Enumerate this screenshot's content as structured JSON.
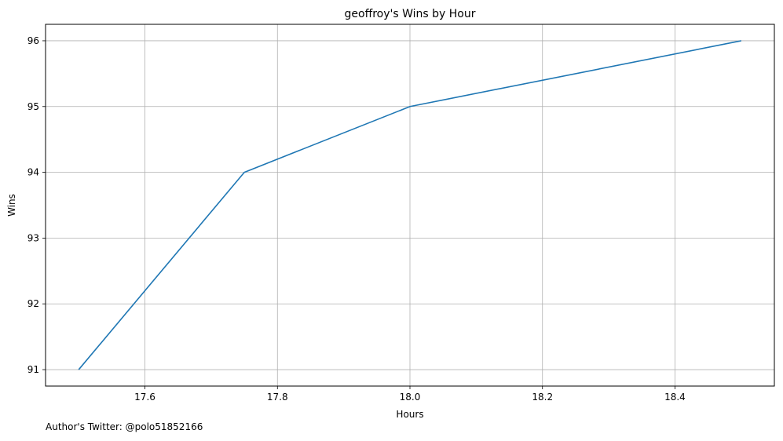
{
  "chart_data": {
    "type": "line",
    "title": "geoffroy's Wins by Hour",
    "xlabel": "Hours",
    "ylabel": "Wins",
    "xlim": [
      17.45,
      18.55
    ],
    "ylim": [
      90.75,
      96.25
    ],
    "xticks": [
      17.6,
      17.8,
      18.0,
      18.2,
      18.4
    ],
    "xtick_labels": [
      "17.6",
      "17.8",
      "18.0",
      "18.2",
      "18.4"
    ],
    "yticks": [
      91,
      92,
      93,
      94,
      95,
      96
    ],
    "ytick_labels": [
      "91",
      "92",
      "93",
      "94",
      "95",
      "96"
    ],
    "grid": true,
    "series": [
      {
        "color": "#1f77b4",
        "x": [
          17.5,
          17.75,
          18.0,
          18.5
        ],
        "y": [
          91,
          94,
          95,
          96
        ]
      }
    ]
  },
  "footer": {
    "note": "Author's Twitter: @polo51852166"
  }
}
